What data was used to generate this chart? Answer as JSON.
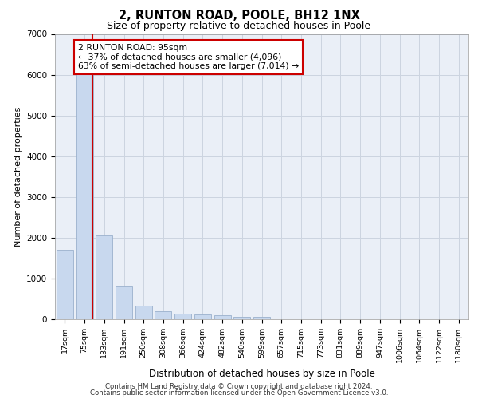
{
  "title1": "2, RUNTON ROAD, POOLE, BH12 1NX",
  "title2": "Size of property relative to detached houses in Poole",
  "xlabel": "Distribution of detached houses by size in Poole",
  "ylabel": "Number of detached properties",
  "categories": [
    "17sqm",
    "75sqm",
    "133sqm",
    "191sqm",
    "250sqm",
    "308sqm",
    "366sqm",
    "424sqm",
    "482sqm",
    "540sqm",
    "599sqm",
    "657sqm",
    "715sqm",
    "773sqm",
    "831sqm",
    "889sqm",
    "947sqm",
    "1006sqm",
    "1064sqm",
    "1122sqm",
    "1180sqm"
  ],
  "values": [
    1700,
    6050,
    2050,
    800,
    340,
    195,
    145,
    115,
    95,
    65,
    50,
    0,
    0,
    0,
    0,
    0,
    0,
    0,
    0,
    0,
    0
  ],
  "bar_color": "#c8d8ee",
  "bar_edge_color": "#9ab0cc",
  "grid_color": "#ccd4e0",
  "background_color": "#eaeff7",
  "vline_x": 1.42,
  "vline_color": "#cc0000",
  "annotation_text": "2 RUNTON ROAD: 95sqm\n← 37% of detached houses are smaller (4,096)\n63% of semi-detached houses are larger (7,014) →",
  "annotation_box_facecolor": "#ffffff",
  "annotation_box_edgecolor": "#cc0000",
  "ylim": [
    0,
    7000
  ],
  "yticks": [
    0,
    1000,
    2000,
    3000,
    4000,
    5000,
    6000,
    7000
  ],
  "footer1": "Contains HM Land Registry data © Crown copyright and database right 2024.",
  "footer2": "Contains public sector information licensed under the Open Government Licence v3.0."
}
